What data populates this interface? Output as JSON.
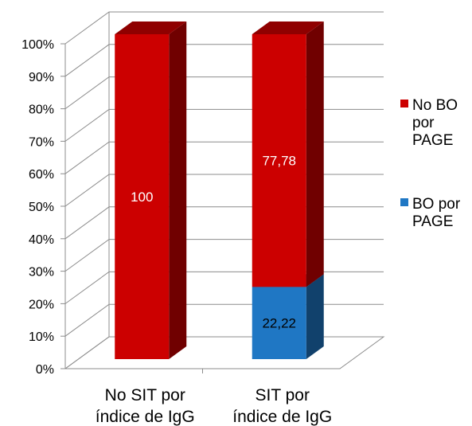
{
  "chart_data": {
    "type": "bar",
    "stacked": true,
    "percent_stacked": true,
    "three_d": true,
    "categories": [
      [
        "No SIT por",
        "índice de IgG"
      ],
      [
        "SIT por",
        "índice de IgG"
      ]
    ],
    "series": [
      {
        "name": [
          "BO por",
          "PAGE"
        ],
        "values": [
          0,
          22.22
        ],
        "labels": [
          "",
          "22,22"
        ],
        "color": "#1f77c4",
        "label_color": "#000000"
      },
      {
        "name": [
          "No BO",
          "por",
          "PAGE"
        ],
        "values": [
          100,
          77.78
        ],
        "labels": [
          "100",
          "77,78"
        ],
        "color": "#cc0000",
        "label_color": "#ffffff"
      }
    ],
    "ylim": [
      0,
      100
    ],
    "yticks": [
      "0%",
      "10%",
      "20%",
      "30%",
      "40%",
      "50%",
      "60%",
      "70%",
      "80%",
      "90%",
      "100%"
    ],
    "legend": "right",
    "grid": true
  }
}
